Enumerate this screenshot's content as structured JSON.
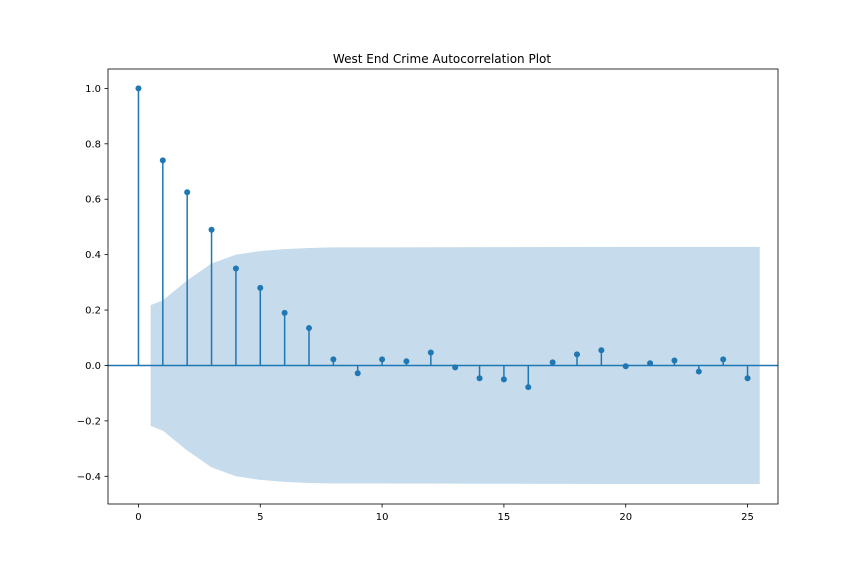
{
  "chart_data": {
    "type": "stem",
    "title": "West End Crime Autocorrelation Plot",
    "xlabel": "",
    "ylabel": "",
    "xlim": [
      -1.25,
      26.25
    ],
    "ylim": [
      -0.5,
      1.07
    ],
    "xticks": [
      0,
      5,
      10,
      15,
      20,
      25
    ],
    "xtick_labels": [
      "0",
      "5",
      "10",
      "15",
      "20",
      "25"
    ],
    "yticks": [
      1.0,
      0.8,
      0.6,
      0.4,
      0.2,
      0.0,
      -0.2,
      -0.4
    ],
    "ytick_labels": [
      "1.0",
      "0.8",
      "0.6",
      "0.4",
      "0.2",
      "0.0",
      "−0.2",
      "−0.4"
    ],
    "grid": false,
    "colors": {
      "series": "#1f77b4",
      "band": "#c6dbeb",
      "axes": "#000000"
    },
    "series": [
      {
        "lags": [
          0,
          1,
          2,
          3,
          4,
          5,
          6,
          7,
          8,
          9,
          10,
          11,
          12,
          13,
          14,
          15,
          16,
          17,
          18,
          19,
          20,
          21,
          22,
          23,
          24,
          25
        ],
        "values": [
          1.0,
          0.74,
          0.625,
          0.49,
          0.35,
          0.28,
          0.19,
          0.135,
          0.022,
          -0.028,
          0.022,
          0.015,
          0.047,
          -0.007,
          -0.046,
          -0.05,
          -0.078,
          0.011,
          0.04,
          0.055,
          -0.003,
          0.008,
          0.018,
          -0.022,
          0.022,
          -0.046
        ]
      }
    ],
    "confidence_band": {
      "lags": [
        0.5,
        1,
        2,
        3,
        4,
        5,
        6,
        7,
        8,
        10,
        15,
        20,
        25,
        25.5
      ],
      "upper": [
        0.218,
        0.235,
        0.307,
        0.368,
        0.4,
        0.413,
        0.42,
        0.424,
        0.426,
        0.426,
        0.427,
        0.428,
        0.428,
        0.428
      ]
    }
  }
}
